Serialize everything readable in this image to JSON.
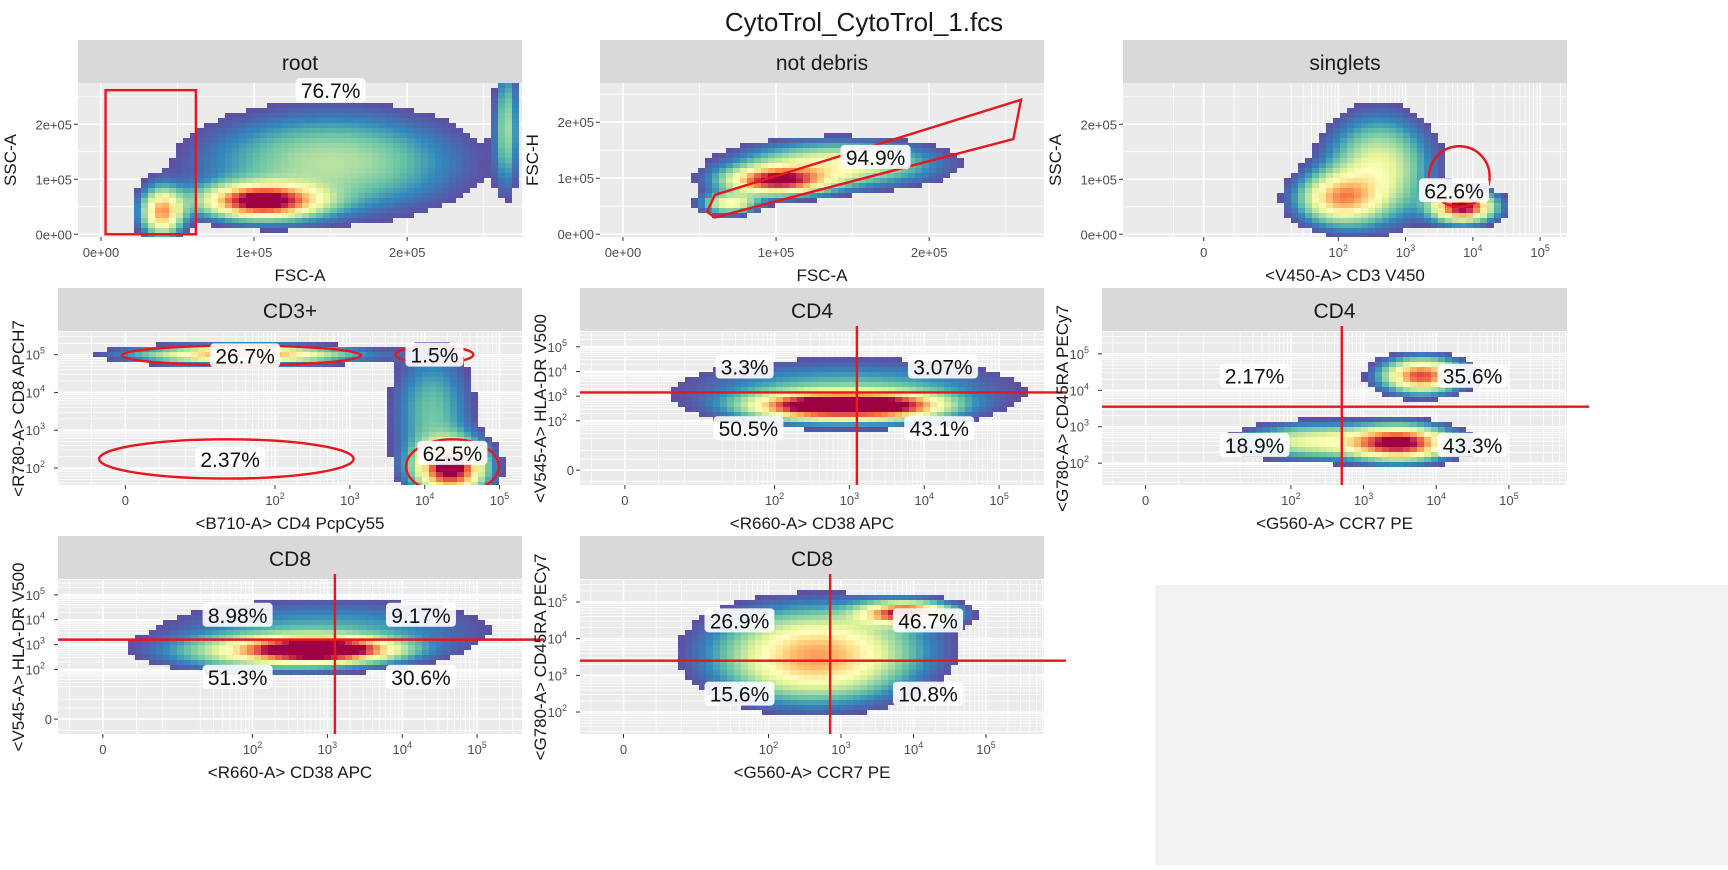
{
  "title": "CytoTrol_CytoTrol_1.fcs",
  "colors": {
    "gate": "#e8161d",
    "strip": "#d9d9d9",
    "panel": "#ebebeb",
    "grid": "#ffffff",
    "density_low": "#5e4fa2",
    "density_mid": "#ffffbf",
    "density_high": "#9e0142"
  },
  "chart_data": [
    {
      "type": "heatmap",
      "strip": "root",
      "xlabel": "FSC-A",
      "ylabel": "SSC-A",
      "x_scale": "linear",
      "y_scale": "linear",
      "xlim": [
        -15000,
        275000
      ],
      "ylim": [
        -5000,
        275000
      ],
      "x_ticks": [
        {
          "v": 0,
          "l": "0e+00"
        },
        {
          "v": 100000,
          "l": "1e+05"
        },
        {
          "v": 200000,
          "l": "2e+05"
        }
      ],
      "y_ticks": [
        {
          "v": 0,
          "l": "0e+00"
        },
        {
          "v": 100000,
          "l": "1e+05"
        },
        {
          "v": 200000,
          "l": "2e+05"
        }
      ],
      "gates": [
        {
          "kind": "rect",
          "x": [
            3000,
            62000
          ],
          "y": [
            0,
            262000
          ]
        }
      ],
      "labels": [
        {
          "text": "76.7%",
          "x": 150000,
          "y": 262000
        }
      ],
      "density": [
        {
          "x": 105000,
          "y": 60000,
          "sx": 25000,
          "sy": 20000,
          "w": 1.0
        },
        {
          "x": 40000,
          "y": 40000,
          "sx": 9000,
          "sy": 28000,
          "w": 0.7
        },
        {
          "x": 150000,
          "y": 130000,
          "sx": 55000,
          "sy": 60000,
          "w": 0.35
        },
        {
          "x": 265000,
          "y": 200000,
          "sx": 5000,
          "sy": 70000,
          "w": 0.3
        }
      ]
    },
    {
      "type": "heatmap",
      "strip": "not debris",
      "xlabel": "FSC-A",
      "ylabel": "FSC-H",
      "x_scale": "linear",
      "y_scale": "linear",
      "xlim": [
        -15000,
        275000
      ],
      "ylim": [
        -5000,
        270000
      ],
      "x_ticks": [
        {
          "v": 0,
          "l": "0e+00"
        },
        {
          "v": 100000,
          "l": "1e+05"
        },
        {
          "v": 200000,
          "l": "2e+05"
        }
      ],
      "y_ticks": [
        {
          "v": 0,
          "l": "0e+00"
        },
        {
          "v": 100000,
          "l": "1e+05"
        },
        {
          "v": 200000,
          "l": "2e+05"
        }
      ],
      "gates": [
        {
          "kind": "poly",
          "pts": [
            [
              55000,
              40000
            ],
            [
              60000,
              70000
            ],
            [
              260000,
              240000
            ],
            [
              255000,
              170000
            ],
            [
              60000,
              30000
            ]
          ]
        }
      ],
      "labels": [
        {
          "text": "94.9%",
          "x": 165000,
          "y": 138000
        }
      ],
      "density": [
        {
          "x": 100000,
          "y": 95000,
          "sx": 22000,
          "sy": 16000,
          "w": 0.9
        },
        {
          "x": 140000,
          "y": 125000,
          "sx": 40000,
          "sy": 25000,
          "w": 0.5
        },
        {
          "x": 70000,
          "y": 55000,
          "sx": 12000,
          "sy": 12000,
          "w": 0.5
        }
      ]
    },
    {
      "type": "heatmap",
      "strip": "singlets",
      "xlabel": "<V450-A> CD3 V450",
      "ylabel": "SSC-A",
      "x_scale": "log",
      "y_scale": "linear",
      "xlim": [
        -1.2,
        5.4
      ],
      "ylim": [
        -5000,
        275000
      ],
      "x_ticks": [
        {
          "v": 0,
          "l": "0"
        },
        {
          "v": 2,
          "l": "10",
          "sup": "2"
        },
        {
          "v": 3,
          "l": "10",
          "sup": "3"
        },
        {
          "v": 4,
          "l": "10",
          "sup": "4"
        },
        {
          "v": 5,
          "l": "10",
          "sup": "5"
        }
      ],
      "y_ticks": [
        {
          "v": 0,
          "l": "0e+00"
        },
        {
          "v": 100000,
          "l": "1e+05"
        },
        {
          "v": 200000,
          "l": "2e+05"
        }
      ],
      "gates": [
        {
          "kind": "ellipse",
          "cx": 3.8,
          "cy": 105000,
          "rx": 0.45,
          "ry": 55000
        }
      ],
      "labels": [
        {
          "text": "62.6%",
          "x": 3.72,
          "y": 80000
        }
      ],
      "density": [
        {
          "x": 3.85,
          "y": 50000,
          "sx": 0.3,
          "sy": 18000,
          "w": 1.0
        },
        {
          "x": 2.0,
          "y": 65000,
          "sx": 0.4,
          "sy": 30000,
          "w": 0.6
        },
        {
          "x": 2.6,
          "y": 120000,
          "sx": 0.5,
          "sy": 60000,
          "w": 0.45
        }
      ]
    },
    {
      "type": "heatmap",
      "strip": "CD3+",
      "xlabel": "<B710-A> CD4 PcpCy55",
      "ylabel": "<R780-A> CD8 APCH7",
      "x_scale": "log",
      "y_scale": "log",
      "xlim": [
        -0.9,
        5.3
      ],
      "ylim": [
        1.55,
        5.6
      ],
      "x_ticks": [
        {
          "v": 0,
          "l": "0"
        },
        {
          "v": 2,
          "l": "10",
          "sup": "2"
        },
        {
          "v": 3,
          "l": "10",
          "sup": "3"
        },
        {
          "v": 4,
          "l": "10",
          "sup": "4"
        },
        {
          "v": 5,
          "l": "10",
          "sup": "5"
        }
      ],
      "y_ticks": [
        {
          "v": 2,
          "l": "10",
          "sup": "2"
        },
        {
          "v": 3,
          "l": "10",
          "sup": "3"
        },
        {
          "v": 4,
          "l": "10",
          "sup": "4"
        },
        {
          "v": 5,
          "l": "10",
          "sup": "5"
        }
      ],
      "gates": [
        {
          "kind": "ellipse",
          "cx": 1.55,
          "cy": 4.98,
          "rx": 1.6,
          "ry": 0.26
        },
        {
          "kind": "ellipse",
          "cx": 4.13,
          "cy": 5.0,
          "rx": 0.52,
          "ry": 0.22
        },
        {
          "kind": "ellipse",
          "cx": 1.35,
          "cy": 2.24,
          "rx": 1.7,
          "ry": 0.52
        },
        {
          "kind": "ellipse",
          "cx": 4.37,
          "cy": 2.04,
          "rx": 0.62,
          "ry": 0.72
        }
      ],
      "labels": [
        {
          "text": "26.7%",
          "x": 1.6,
          "y": 4.98
        },
        {
          "text": "1.5%",
          "x": 4.13,
          "y": 5.0
        },
        {
          "text": "2.37%",
          "x": 1.4,
          "y": 2.24
        },
        {
          "text": "62.5%",
          "x": 4.37,
          "y": 2.4
        }
      ],
      "density": [
        {
          "x": 4.35,
          "y": 2.0,
          "sx": 0.3,
          "sy": 0.45,
          "w": 1.0
        },
        {
          "x": 1.6,
          "y": 5.0,
          "sx": 0.9,
          "sy": 0.15,
          "w": 0.75
        },
        {
          "x": 4.1,
          "y": 3.5,
          "sx": 0.35,
          "sy": 1.1,
          "w": 0.25
        }
      ]
    },
    {
      "type": "heatmap",
      "strip": "CD4",
      "xlabel": "<R660-A> CD38 APC",
      "ylabel": "<V545-A> HLA-DR V500",
      "x_scale": "log",
      "y_scale": "log",
      "xlim": [
        -0.6,
        5.6
      ],
      "ylim": [
        -0.6,
        5.6
      ],
      "x_ticks": [
        {
          "v": 0,
          "l": "0"
        },
        {
          "v": 2,
          "l": "10",
          "sup": "2"
        },
        {
          "v": 3,
          "l": "10",
          "sup": "3"
        },
        {
          "v": 4,
          "l": "10",
          "sup": "4"
        },
        {
          "v": 5,
          "l": "10",
          "sup": "5"
        }
      ],
      "y_ticks": [
        {
          "v": 0,
          "l": "0"
        },
        {
          "v": 2,
          "l": "10",
          "sup": "2"
        },
        {
          "v": 3,
          "l": "10",
          "sup": "3"
        },
        {
          "v": 4,
          "l": "10",
          "sup": "4"
        },
        {
          "v": 5,
          "l": "10",
          "sup": "5"
        }
      ],
      "gates": [
        {
          "kind": "quad",
          "x": 3.1,
          "y": 3.15
        }
      ],
      "labels": [
        {
          "text": "3.3%",
          "x": 1.6,
          "y": 4.2
        },
        {
          "text": "3.07%",
          "x": 4.25,
          "y": 4.2
        },
        {
          "text": "50.5%",
          "x": 1.65,
          "y": 1.7
        },
        {
          "text": "43.1%",
          "x": 4.2,
          "y": 1.7
        }
      ],
      "density": [
        {
          "x": 2.6,
          "y": 2.6,
          "sx": 0.6,
          "sy": 0.35,
          "w": 1.0
        },
        {
          "x": 3.6,
          "y": 2.6,
          "sx": 0.5,
          "sy": 0.35,
          "w": 0.7
        },
        {
          "x": 3.0,
          "y": 3.2,
          "sx": 1.4,
          "sy": 0.8,
          "w": 0.25
        }
      ]
    },
    {
      "type": "heatmap",
      "strip": "CD4",
      "xlabel": "<G560-A> CCR7 PE",
      "ylabel": "<G780-A> CD45RA PECy7",
      "x_scale": "log",
      "y_scale": "log",
      "xlim": [
        -0.6,
        5.8
      ],
      "ylim": [
        1.4,
        5.6
      ],
      "x_ticks": [
        {
          "v": 0,
          "l": "0"
        },
        {
          "v": 2,
          "l": "10",
          "sup": "2"
        },
        {
          "v": 3,
          "l": "10",
          "sup": "3"
        },
        {
          "v": 4,
          "l": "10",
          "sup": "4"
        },
        {
          "v": 5,
          "l": "10",
          "sup": "5"
        }
      ],
      "y_ticks": [
        {
          "v": 2,
          "l": "10",
          "sup": "2"
        },
        {
          "v": 3,
          "l": "10",
          "sup": "3"
        },
        {
          "v": 4,
          "l": "10",
          "sup": "4"
        },
        {
          "v": 5,
          "l": "10",
          "sup": "5"
        }
      ],
      "gates": [
        {
          "kind": "quad",
          "x": 2.7,
          "y": 3.55
        }
      ],
      "labels": [
        {
          "text": "2.17%",
          "x": 1.5,
          "y": 4.4
        },
        {
          "text": "35.6%",
          "x": 4.5,
          "y": 4.4
        },
        {
          "text": "18.9%",
          "x": 1.5,
          "y": 2.5
        },
        {
          "text": "43.3%",
          "x": 4.5,
          "y": 2.5
        }
      ],
      "density": [
        {
          "x": 3.5,
          "y": 2.55,
          "sx": 0.45,
          "sy": 0.3,
          "w": 1.0
        },
        {
          "x": 3.8,
          "y": 4.4,
          "sx": 0.35,
          "sy": 0.3,
          "w": 0.85
        },
        {
          "x": 2.3,
          "y": 2.6,
          "sx": 0.6,
          "sy": 0.3,
          "w": 0.45
        }
      ]
    },
    {
      "type": "heatmap",
      "strip": "CD8",
      "xlabel": "<R660-A> CD38 APC",
      "ylabel": "<V545-A> HLA-DR V500",
      "x_scale": "log",
      "y_scale": "log",
      "xlim": [
        -0.6,
        5.6
      ],
      "ylim": [
        -0.6,
        5.6
      ],
      "x_ticks": [
        {
          "v": 0,
          "l": "0"
        },
        {
          "v": 2,
          "l": "10",
          "sup": "2"
        },
        {
          "v": 3,
          "l": "10",
          "sup": "3"
        },
        {
          "v": 4,
          "l": "10",
          "sup": "4"
        },
        {
          "v": 5,
          "l": "10",
          "sup": "5"
        }
      ],
      "y_ticks": [
        {
          "v": 0,
          "l": "0"
        },
        {
          "v": 2,
          "l": "10",
          "sup": "2"
        },
        {
          "v": 3,
          "l": "10",
          "sup": "3"
        },
        {
          "v": 4,
          "l": "10",
          "sup": "4"
        },
        {
          "v": 5,
          "l": "10",
          "sup": "5"
        }
      ],
      "gates": [
        {
          "kind": "quad",
          "x": 3.1,
          "y": 3.2
        }
      ],
      "labels": [
        {
          "text": "8.98%",
          "x": 1.8,
          "y": 4.2
        },
        {
          "text": "9.17%",
          "x": 4.25,
          "y": 4.2
        },
        {
          "text": "51.3%",
          "x": 1.8,
          "y": 1.7
        },
        {
          "text": "30.6%",
          "x": 4.25,
          "y": 1.7
        }
      ],
      "density": [
        {
          "x": 2.95,
          "y": 2.8,
          "sx": 0.6,
          "sy": 0.3,
          "w": 1.0
        },
        {
          "x": 2.3,
          "y": 2.7,
          "sx": 0.9,
          "sy": 0.45,
          "w": 0.45
        },
        {
          "x": 3.0,
          "y": 3.6,
          "sx": 1.4,
          "sy": 0.8,
          "w": 0.2
        }
      ]
    },
    {
      "type": "heatmap",
      "strip": "CD8",
      "xlabel": "<G560-A> CCR7 PE",
      "ylabel": "<G780-A> CD45RA PECy7",
      "x_scale": "log",
      "y_scale": "log",
      "xlim": [
        -0.6,
        5.8
      ],
      "ylim": [
        1.4,
        5.6
      ],
      "x_ticks": [
        {
          "v": 0,
          "l": "0"
        },
        {
          "v": 2,
          "l": "10",
          "sup": "2"
        },
        {
          "v": 3,
          "l": "10",
          "sup": "3"
        },
        {
          "v": 4,
          "l": "10",
          "sup": "4"
        },
        {
          "v": 5,
          "l": "10",
          "sup": "5"
        }
      ],
      "y_ticks": [
        {
          "v": 2,
          "l": "10",
          "sup": "2"
        },
        {
          "v": 3,
          "l": "10",
          "sup": "3"
        },
        {
          "v": 4,
          "l": "10",
          "sup": "4"
        },
        {
          "v": 5,
          "l": "10",
          "sup": "5"
        }
      ],
      "gates": [
        {
          "kind": "quad",
          "x": 2.85,
          "y": 3.4
        }
      ],
      "labels": [
        {
          "text": "26.9%",
          "x": 1.6,
          "y": 4.5
        },
        {
          "text": "46.7%",
          "x": 4.2,
          "y": 4.5
        },
        {
          "text": "15.6%",
          "x": 1.6,
          "y": 2.5
        },
        {
          "text": "10.8%",
          "x": 4.2,
          "y": 2.5
        }
      ],
      "density": [
        {
          "x": 3.9,
          "y": 4.7,
          "sx": 0.4,
          "sy": 0.2,
          "w": 0.9
        },
        {
          "x": 2.7,
          "y": 3.8,
          "sx": 0.9,
          "sy": 0.7,
          "w": 0.55
        },
        {
          "x": 2.6,
          "y": 3.0,
          "sx": 0.8,
          "sy": 0.6,
          "w": 0.3
        }
      ]
    }
  ]
}
